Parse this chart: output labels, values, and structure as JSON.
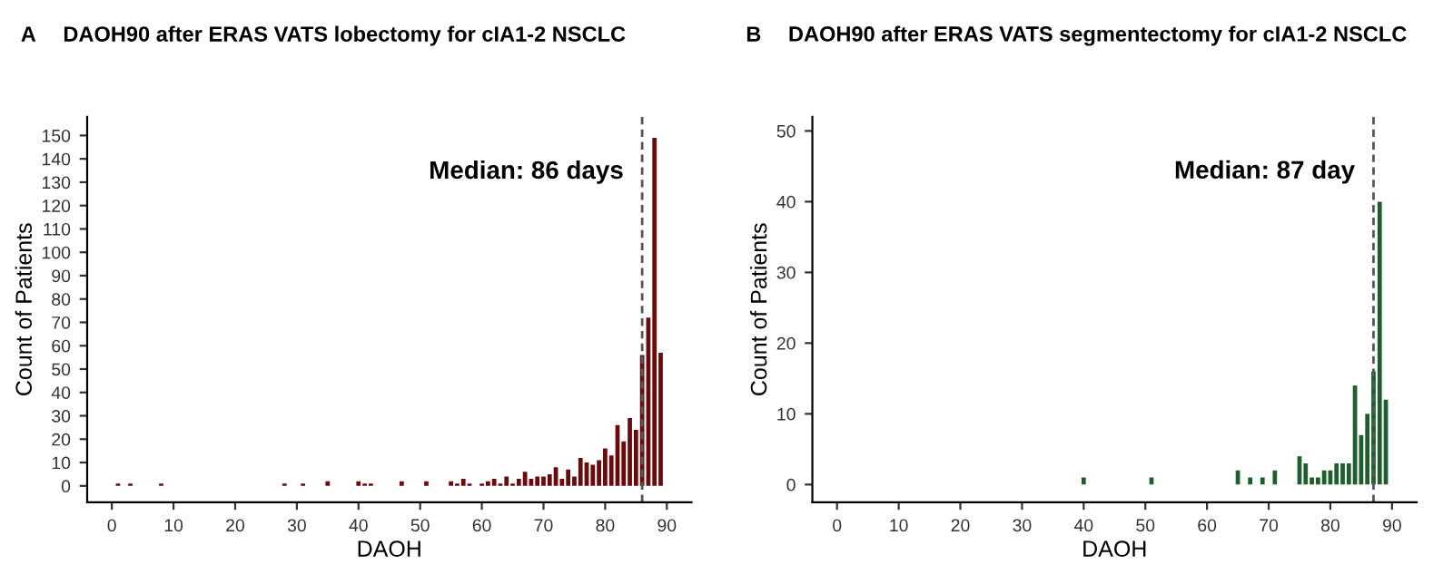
{
  "chart_data": [
    {
      "type": "bar",
      "title": "DAOH90 after ERAS VATS lobectomy for cIA1-2 NSCLC",
      "annotations": [
        "A"
      ],
      "xlabel": "DAOH",
      "ylabel": "Count of Patients",
      "x": [
        1,
        3,
        8,
        28,
        31,
        35,
        40,
        41,
        42,
        47,
        51,
        55,
        56,
        57,
        58,
        60,
        61,
        62,
        63,
        64,
        65,
        66,
        67,
        68,
        69,
        70,
        71,
        72,
        73,
        74,
        75,
        76,
        77,
        78,
        79,
        80,
        81,
        82,
        83,
        84,
        85,
        86,
        87,
        88,
        89
      ],
      "values": [
        1,
        1,
        1,
        1,
        1,
        2,
        2,
        1,
        1,
        2,
        2,
        2,
        1,
        3,
        1,
        1,
        2,
        3,
        1,
        4,
        1,
        3,
        6,
        3,
        4,
        4,
        5,
        8,
        3,
        7,
        4,
        12,
        10,
        9,
        11,
        16,
        13,
        26,
        19,
        29,
        24,
        56,
        72,
        149,
        57
      ],
      "color": "#6b0a0a",
      "xlim": [
        -4,
        94
      ],
      "xticks": [
        0,
        10,
        20,
        30,
        40,
        50,
        60,
        70,
        80,
        90
      ],
      "ylim": [
        -7,
        158
      ],
      "yticks": [
        0,
        10,
        20,
        30,
        40,
        50,
        60,
        70,
        80,
        90,
        100,
        110,
        120,
        130,
        140,
        150
      ],
      "grid": false,
      "ref_lines": [
        {
          "axis": "x",
          "value": 86,
          "label": "Median: 86 days",
          "color": "#555555",
          "line_style": "dashed"
        }
      ]
    },
    {
      "type": "bar",
      "title": "DAOH90 after ERAS VATS segmentectomy for cIA1-2 NSCLC",
      "annotations": [
        "B"
      ],
      "xlabel": "DAOH",
      "ylabel": "Count of Patients",
      "x": [
        40,
        51,
        65,
        67,
        69,
        71,
        75,
        76,
        77,
        78,
        79,
        80,
        81,
        82,
        83,
        84,
        85,
        86,
        87,
        88,
        89
      ],
      "values": [
        1,
        1,
        2,
        1,
        1,
        2,
        4,
        3,
        1,
        1,
        2,
        2,
        3,
        3,
        3,
        14,
        7,
        10,
        16,
        40,
        12
      ],
      "color": "#1e5e2e",
      "xlim": [
        -4,
        94
      ],
      "xticks": [
        0,
        10,
        20,
        30,
        40,
        50,
        60,
        70,
        80,
        90
      ],
      "ylim": [
        -2.5,
        52
      ],
      "yticks": [
        0,
        10,
        20,
        30,
        40,
        50
      ],
      "grid": false,
      "ref_lines": [
        {
          "axis": "x",
          "value": 87,
          "label": "Median: 87 day",
          "color": "#555555",
          "line_style": "dashed"
        }
      ]
    }
  ]
}
